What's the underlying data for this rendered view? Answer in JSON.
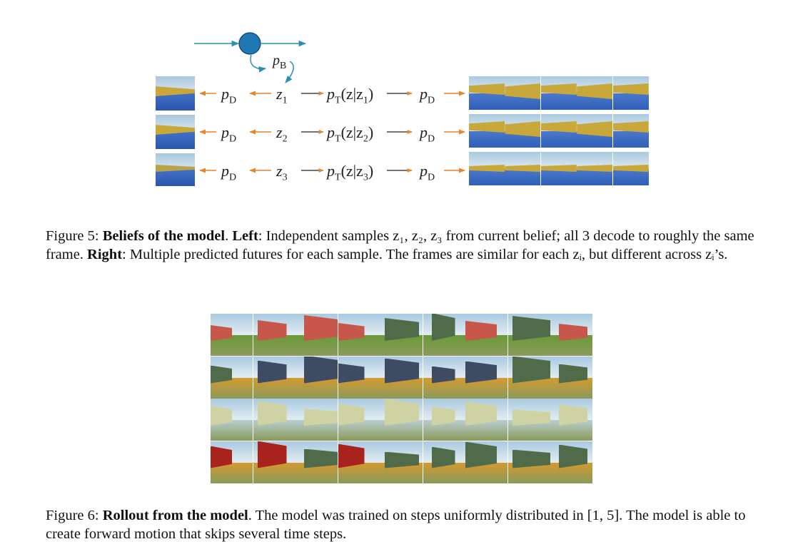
{
  "figure5": {
    "diagram": {
      "belief_node": "p",
      "belief_node_sub": "B",
      "rows": [
        {
          "decoder_left": "p",
          "decoder_left_sub": "D",
          "z": "z",
          "z_sub": "1",
          "transition": "p",
          "transition_sub": "T",
          "transition_arg": "(z|z",
          "transition_arg_sub": "1",
          "transition_close": ")",
          "decoder_right": "p",
          "decoder_right_sub": "D"
        },
        {
          "decoder_left": "p",
          "decoder_left_sub": "D",
          "z": "z",
          "z_sub": "2",
          "transition": "p",
          "transition_sub": "T",
          "transition_arg": "(z|z",
          "transition_arg_sub": "2",
          "transition_close": ")",
          "decoder_right": "p",
          "decoder_right_sub": "D"
        },
        {
          "decoder_left": "p",
          "decoder_left_sub": "D",
          "z": "z",
          "z_sub": "3",
          "transition": "p",
          "transition_sub": "T",
          "transition_arg": "(z|z",
          "transition_arg_sub": "3",
          "transition_close": ")",
          "decoder_right": "p",
          "decoder_right_sub": "D"
        }
      ]
    },
    "caption": {
      "label": "Figure 5: ",
      "title": "Beliefs of the model",
      "sep1": ". ",
      "left_label": "Left",
      "left_text": ": Independent samples z₁, z₂, z₃ from current belief; all 3 decode to roughly the same frame. ",
      "right_label": "Right",
      "right_text": ": Multiple predicted futures for each sample. The frames are similar for each zᵢ, but different across zᵢ’s."
    }
  },
  "figure6": {
    "caption": {
      "label": "Figure 6: ",
      "title": "Rollout from the model",
      "text": ". The model was trained on steps uniformly distributed in [1, 5]. The model is able to create forward motion that skips several time steps."
    }
  },
  "colors": {
    "teal_arrow": "#2a8fb0",
    "orange_arrow": "#e8842a",
    "node_fill": "#1f77b4",
    "sky": "#a9c9e0",
    "blue_floor": "#2f5fb8",
    "yellow_wall": "#c8a83a",
    "red_wall": "#c7574a",
    "green_wall": "#4f6b4a",
    "grass": "#6a9a3a",
    "slate_wall": "#3f4a63",
    "orange_floor": "#d49a30",
    "pale_floor": "#b9cfd2",
    "cream_wall": "#cfd3a4",
    "dark_red_wall": "#a9231e"
  }
}
